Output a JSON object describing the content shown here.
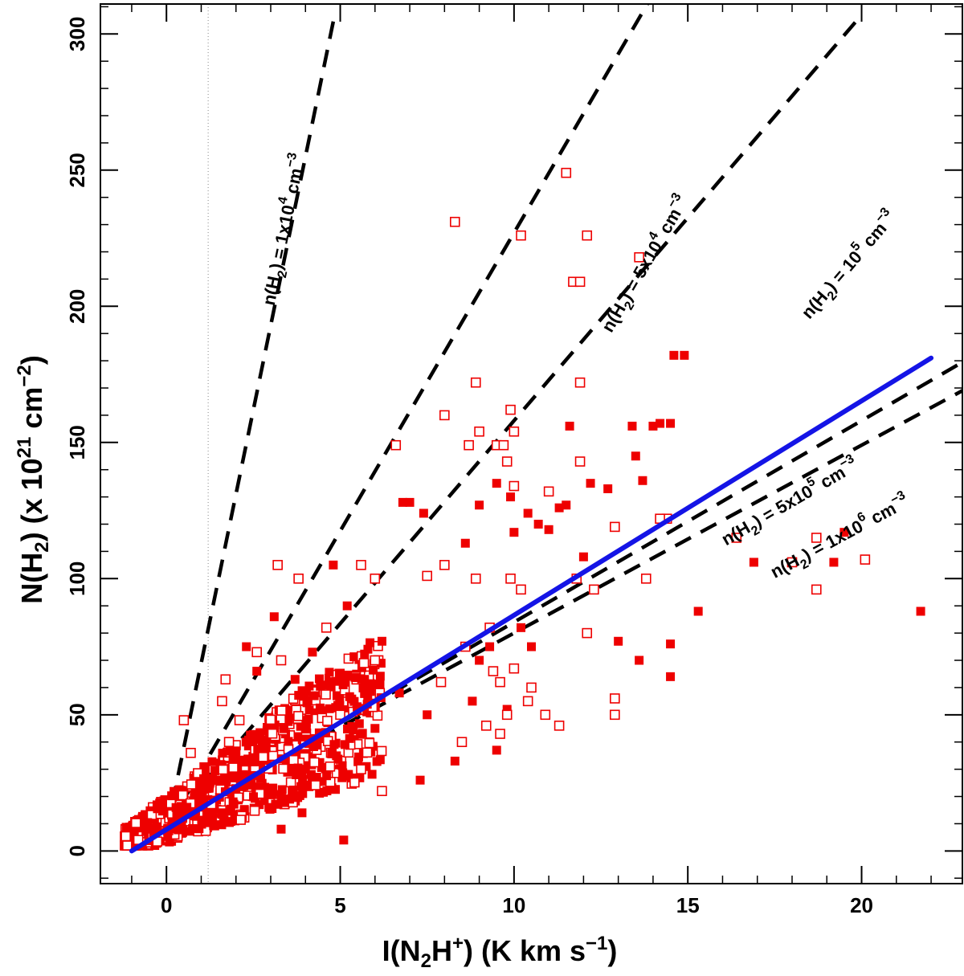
{
  "chart_data": {
    "type": "scatter",
    "xlim": [
      -1.9,
      22.9
    ],
    "ylim": [
      -12,
      311
    ],
    "x_ticks": [
      0,
      5,
      10,
      15,
      20
    ],
    "y_ticks": [
      0,
      50,
      100,
      150,
      200,
      250,
      300
    ],
    "x_ticks_text": [
      "0",
      "5",
      "10",
      "15",
      "20"
    ],
    "y_ticks_text": [
      "0",
      "50",
      "100",
      "150",
      "200",
      "250",
      "300"
    ],
    "xlabel": {
      "pre": "I(N",
      "sub": "2",
      "mid": "H",
      "sup": "+",
      "post": ") (K km s",
      "sup2": "−1",
      "end": ")"
    },
    "ylabel": {
      "pre": "N(H",
      "sub": "2",
      "mid": ") (x 10",
      "sup": "21",
      "mid2": " cm",
      "sup2": "−2",
      "end": ")"
    },
    "reference_line_x": 1.2,
    "fit_line": {
      "x": [
        -1.0,
        22.0
      ],
      "y": [
        0.0,
        181.0
      ],
      "color": "#1414e6"
    },
    "density_lines": [
      {
        "label": {
          "pre": "n(H",
          "sub": "2",
          "mid": ") = 1x10",
          "sup": "4",
          "post": " cm",
          "sup2": "−3"
        },
        "intercept": 7,
        "slope": 62.0,
        "x_end": 4.85
      },
      {
        "label": {
          "pre": "n(H",
          "sub": "2",
          "mid": ") = 5x10",
          "sup": "4",
          "post": " cm",
          "sup2": "−3"
        },
        "intercept": 8,
        "slope": 21.9,
        "x_end": 14.0
      },
      {
        "label": {
          "pre": "n(H",
          "sub": "2",
          "mid": ") = 10",
          "sup": "5",
          "post": " cm",
          "sup2": "−3"
        },
        "intercept": 9,
        "slope": 14.9,
        "x_end": 20.0
      },
      {
        "label": {
          "pre": "n(H",
          "sub": "2",
          "mid": ") = 5x10",
          "sup": "5",
          "post": " cm",
          "sup2": "−3"
        },
        "intercept": 10,
        "slope": 7.4,
        "x_end": 23.0
      },
      {
        "label": {
          "pre": "n(H",
          "sub": "2",
          "mid": ") = 1x10",
          "sup": "6",
          "post": " cm",
          "sup2": "−3"
        },
        "intercept": 11,
        "slope": 6.9,
        "x_end": 23.0
      }
    ],
    "series": [
      {
        "name": "filled",
        "marker": "filled-square",
        "color": "#ee0000",
        "points": [
          [
            3.1,
            86
          ],
          [
            4.8,
            105
          ],
          [
            5.2,
            90
          ],
          [
            6.8,
            128
          ],
          [
            7.0,
            128
          ],
          [
            7.4,
            124
          ],
          [
            8.6,
            113
          ],
          [
            9.0,
            127
          ],
          [
            9.5,
            135
          ],
          [
            9.9,
            130
          ],
          [
            10.0,
            117
          ],
          [
            10.4,
            124
          ],
          [
            10.7,
            120
          ],
          [
            11.0,
            118
          ],
          [
            11.3,
            126
          ],
          [
            11.5,
            127
          ],
          [
            11.6,
            156
          ],
          [
            12.0,
            108
          ],
          [
            12.2,
            135
          ],
          [
            12.7,
            133
          ],
          [
            13.4,
            156
          ],
          [
            13.5,
            145
          ],
          [
            13.7,
            136
          ],
          [
            14.0,
            156
          ],
          [
            14.2,
            157
          ],
          [
            14.5,
            157
          ],
          [
            14.6,
            182
          ],
          [
            14.9,
            182
          ],
          [
            13.6,
            70
          ],
          [
            13.0,
            77
          ],
          [
            14.5,
            76
          ],
          [
            14.5,
            64
          ],
          [
            15.3,
            88
          ],
          [
            16.9,
            106
          ],
          [
            19.2,
            106
          ],
          [
            19.5,
            117
          ],
          [
            21.7,
            88
          ],
          [
            10.5,
            75
          ],
          [
            10.2,
            82
          ],
          [
            9.0,
            70
          ],
          [
            9.3,
            75
          ],
          [
            9.8,
            52
          ],
          [
            9.5,
            37
          ],
          [
            8.8,
            55
          ],
          [
            8.3,
            33
          ],
          [
            7.3,
            26
          ],
          [
            6.0,
            45
          ],
          [
            7.5,
            50
          ],
          [
            6.7,
            58
          ],
          [
            5.1,
            4
          ],
          [
            3.9,
            14
          ],
          [
            3.3,
            8
          ],
          [
            4.0,
            30
          ],
          [
            2.3,
            75
          ],
          [
            2.6,
            66
          ],
          [
            3.7,
            63
          ],
          [
            4.2,
            73
          ],
          [
            5.7,
            63
          ],
          [
            6.2,
            77
          ]
        ]
      },
      {
        "name": "open",
        "marker": "open-square",
        "color": "#ee0000",
        "points": [
          [
            8.3,
            231
          ],
          [
            11.5,
            249
          ],
          [
            10.2,
            226
          ],
          [
            12.1,
            226
          ],
          [
            13.6,
            218
          ],
          [
            11.7,
            209
          ],
          [
            11.9,
            209
          ],
          [
            8.9,
            172
          ],
          [
            11.9,
            172
          ],
          [
            8.0,
            160
          ],
          [
            9.0,
            154
          ],
          [
            9.9,
            162
          ],
          [
            10.0,
            154
          ],
          [
            8.7,
            149
          ],
          [
            6.6,
            149
          ],
          [
            9.5,
            149
          ],
          [
            9.8,
            143
          ],
          [
            9.7,
            149
          ],
          [
            11.9,
            143
          ],
          [
            10.0,
            134
          ],
          [
            11.0,
            132
          ],
          [
            12.9,
            119
          ],
          [
            16.4,
            115
          ],
          [
            18.7,
            115
          ],
          [
            14.4,
            122
          ],
          [
            14.2,
            122
          ],
          [
            3.2,
            105
          ],
          [
            3.8,
            100
          ],
          [
            5.6,
            105
          ],
          [
            6.0,
            100
          ],
          [
            7.5,
            101
          ],
          [
            8.0,
            105
          ],
          [
            8.9,
            100
          ],
          [
            9.9,
            100
          ],
          [
            10.2,
            96
          ],
          [
            11.8,
            100
          ],
          [
            12.3,
            96
          ],
          [
            13.8,
            100
          ],
          [
            18.0,
            106
          ],
          [
            18.7,
            96
          ],
          [
            20.1,
            107
          ],
          [
            12.1,
            80
          ],
          [
            12.9,
            56
          ],
          [
            12.9,
            50
          ],
          [
            11.3,
            46
          ],
          [
            10.5,
            60
          ],
          [
            9.6,
            62
          ],
          [
            9.4,
            66
          ],
          [
            8.6,
            75
          ],
          [
            9.3,
            82
          ],
          [
            10.0,
            67
          ],
          [
            10.4,
            55
          ],
          [
            9.8,
            50
          ],
          [
            9.6,
            43
          ],
          [
            10.9,
            50
          ],
          [
            7.9,
            62
          ],
          [
            8.5,
            40
          ],
          [
            9.2,
            46
          ],
          [
            6.0,
            70
          ],
          [
            4.6,
            82
          ],
          [
            3.3,
            70
          ],
          [
            2.6,
            73
          ],
          [
            1.7,
            63
          ],
          [
            1.6,
            55
          ],
          [
            1.8,
            40
          ],
          [
            0.5,
            48
          ],
          [
            0.7,
            36
          ],
          [
            2.1,
            48
          ],
          [
            5.0,
            50
          ],
          [
            5.6,
            30
          ],
          [
            6.2,
            22
          ]
        ]
      }
    ]
  }
}
